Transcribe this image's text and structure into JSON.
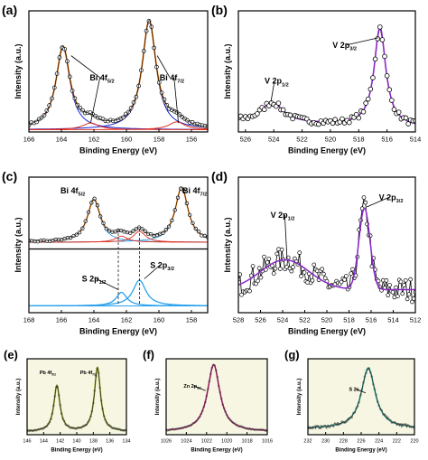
{
  "figure": {
    "panels": [
      "(a)",
      "(b)",
      "(c)",
      "(d)",
      "(e)",
      "(f)",
      "(g)"
    ]
  },
  "colors": {
    "data": "#000000",
    "fit_orange": "#f07800",
    "peak_blue": "#1a2ad8",
    "peak_cyan": "#2aa2ec",
    "fit_purple": "#8a28c8",
    "fit_olive": "#8a9a10",
    "fit_magenta": "#e0208a",
    "fit_teal": "#2aa89a",
    "fill_ef": "#f6f6e2"
  },
  "chart_data": [
    {
      "panel": "(a)",
      "type": "line",
      "xlabel": "Binding Energy (eV)",
      "ylabel": "Intensity (a.u.)",
      "xlim": [
        166,
        155
      ],
      "xticks": [
        166,
        164,
        162,
        160,
        158,
        156
      ],
      "ylim": [
        0,
        1.08
      ],
      "annotations": [
        {
          "text": "Bi 4f",
          "sub": "5/2",
          "x": 161.5,
          "y": 0.46,
          "arrow_to": [
            [
              163.4,
              0.68
            ],
            [
              162.2,
              0.08
            ]
          ]
        },
        {
          "text": "Bi 4f",
          "sub": "7/2",
          "x": 157.2,
          "y": 0.46,
          "arrow_to": [
            [
              158.1,
              0.68
            ],
            [
              156.8,
              0.08
            ]
          ]
        }
      ],
      "peaks": [
        {
          "center": 163.9,
          "height": 0.73,
          "width": 0.52,
          "color": "blue"
        },
        {
          "center": 158.6,
          "height": 0.96,
          "width": 0.52,
          "color": "blue"
        },
        {
          "center": 162.2,
          "height": 0.06,
          "width": 0.6,
          "color": "red"
        },
        {
          "center": 156.9,
          "height": 0.07,
          "width": 0.6,
          "color": "red"
        }
      ],
      "baseline": 0.02
    },
    {
      "panel": "(b)",
      "type": "line",
      "xlabel": "Binding Energy (eV)",
      "ylabel": "Intensity (a.u.)",
      "xlim": [
        526.5,
        514
      ],
      "xticks": [
        526,
        524,
        522,
        520,
        518,
        516,
        514
      ],
      "ylim": [
        0,
        1.08
      ],
      "annotations": [
        {
          "text": "V 2p",
          "sub": "1/2",
          "x": 523.8,
          "y": 0.43,
          "arrow_to": [
            [
              524.2,
              0.27
            ]
          ]
        },
        {
          "text": "V 2p",
          "sub": "3/2",
          "x": 519.0,
          "y": 0.75,
          "arrow_to": [
            [
              516.6,
              0.84
            ]
          ]
        }
      ],
      "peaks": [
        {
          "center": 524.1,
          "height": 0.18,
          "width": 0.95
        },
        {
          "center": 516.5,
          "height": 0.88,
          "width": 0.5
        }
      ],
      "baseline": 0.04
    },
    {
      "panel": "(c)",
      "type": "line",
      "xlabel": "Binding Energy (eV)",
      "ylabel": "Intensity (a.u.)",
      "xlim": [
        168,
        157
      ],
      "xticks": [
        168,
        166,
        164,
        162,
        160,
        158
      ],
      "ylim": [
        0,
        1.0
      ],
      "annotations": [
        {
          "text": "Bi 4f",
          "sub": "5/2",
          "x": 165.3,
          "y": 0.88
        },
        {
          "text": "Bi 4f",
          "sub": "7/2",
          "x": 157.8,
          "y": 0.88
        },
        {
          "text": "S 2p",
          "sub": "1/2",
          "x": 164.0,
          "y": 0.23,
          "arrow_to": [
            [
              162.5,
              0.17
            ]
          ]
        },
        {
          "text": "S 2p",
          "sub": "3/2",
          "x": 159.8,
          "y": 0.33,
          "arrow_to": [
            [
              160.9,
              0.25
            ]
          ]
        }
      ],
      "peaks_top": [
        {
          "center": 164.0,
          "height": 0.31,
          "width": 0.48
        },
        {
          "center": 158.6,
          "height": 0.4,
          "width": 0.48
        },
        {
          "center": 162.3,
          "height": 0.045,
          "width": 0.45
        },
        {
          "center": 161.2,
          "height": 0.08,
          "width": 0.45
        }
      ],
      "peaks_bottom": [
        {
          "center": 162.3,
          "height": 0.1,
          "width": 0.4
        },
        {
          "center": 161.2,
          "height": 0.19,
          "width": 0.48
        }
      ],
      "dashed_x": [
        162.5,
        161.2
      ]
    },
    {
      "panel": "(d)",
      "type": "line",
      "xlabel": "Binding Energy (eV)",
      "ylabel": "Intensity (a.u.)",
      "xlim": [
        528,
        512
      ],
      "xticks": [
        528,
        526,
        524,
        522,
        520,
        518,
        516,
        514,
        512
      ],
      "ylim": [
        0,
        1.0
      ],
      "annotations": [
        {
          "text": "V 2p",
          "sub": "1/2",
          "x": 524.0,
          "y": 0.7,
          "arrow_to": [
            [
              523.6,
              0.4
            ]
          ]
        },
        {
          "text": "V 2p",
          "sub": "3/2",
          "x": 514.2,
          "y": 0.83,
          "arrow_to": [
            [
              516.4,
              0.78
            ]
          ]
        }
      ],
      "peaks": [
        {
          "center": 523.8,
          "height": 0.22,
          "width": 2.2
        },
        {
          "center": 516.6,
          "height": 0.6,
          "width": 0.5
        }
      ],
      "baseline": 0.17
    },
    {
      "panel": "(e)",
      "type": "line",
      "xlabel": "Binding Energy (eV)",
      "ylabel": "Intensity (a.u.)",
      "xlim": [
        146,
        134
      ],
      "xticks": [
        146,
        144,
        142,
        140,
        138,
        136,
        134
      ],
      "ylim": [
        0,
        1.0
      ],
      "annotations": [
        {
          "text": "Pb 4f",
          "sub": "5/2",
          "x": 143.5,
          "y": 0.8
        },
        {
          "text": "Pb 4f",
          "sub": "7/2",
          "x": 138.6,
          "y": 0.8
        }
      ],
      "peaks": [
        {
          "center": 142.4,
          "height": 0.6,
          "width": 0.45
        },
        {
          "center": 137.5,
          "height": 0.84,
          "width": 0.45
        }
      ],
      "baseline": 0.04
    },
    {
      "panel": "(f)",
      "type": "line",
      "xlabel": "Binding Energy (eV)",
      "ylabel": "Intensity (a.u.)",
      "xlim": [
        1026,
        1016
      ],
      "xticks": [
        1026,
        1024,
        1022,
        1020,
        1018,
        1016
      ],
      "ylim": [
        0,
        1.0
      ],
      "annotations": [
        {
          "text": "Zn 2p",
          "sub": "3/2",
          "x": 1023.4,
          "y": 0.62,
          "arrow_to": [
            [
              1022.1,
              0.58
            ]
          ]
        }
      ],
      "peaks": [
        {
          "center": 1021.3,
          "height": 0.88,
          "width": 0.75
        }
      ],
      "baseline": 0.04
    },
    {
      "panel": "(g)",
      "type": "line",
      "xlabel": "Binding Energy (eV)",
      "ylabel": "Intensity (a.u.)",
      "xlim": [
        232,
        220
      ],
      "xticks": [
        232,
        230,
        228,
        226,
        224,
        222,
        220
      ],
      "ylim": [
        0,
        1.0
      ],
      "annotations": [
        {
          "text": "S 2s",
          "sub": "",
          "x": 226.8,
          "y": 0.58,
          "arrow_to": [
            [
              225.5,
              0.55
            ]
          ]
        }
      ],
      "peaks": [
        {
          "center": 225.2,
          "height": 0.8,
          "width": 0.95
        }
      ],
      "baseline": 0.08
    }
  ]
}
